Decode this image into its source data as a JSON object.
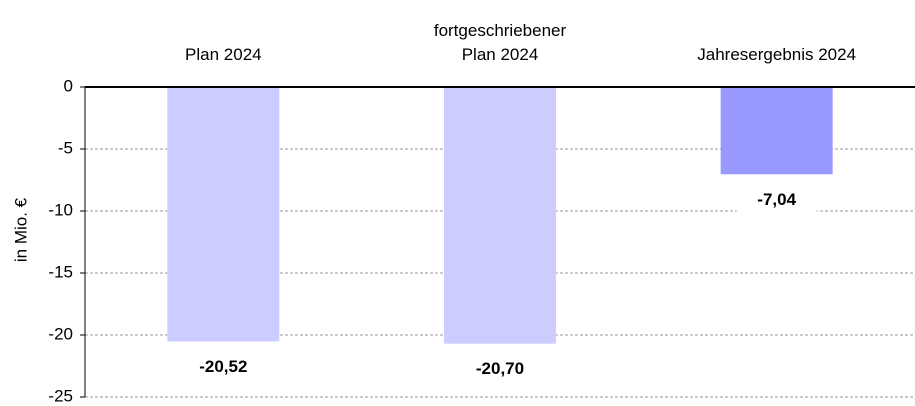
{
  "chart_data": {
    "type": "bar",
    "categories": [
      "Plan 2024",
      "fortgeschriebener\nPlan 2024",
      "Jahresergebnis 2024"
    ],
    "values": [
      -20.52,
      -20.7,
      -7.04
    ],
    "value_labels": [
      "-20,52",
      "-20,70",
      "-7,04"
    ],
    "colors": [
      "#ccccff",
      "#ccccff",
      "#9999ff"
    ],
    "y_label": "in Mio. €",
    "ylim": [
      -25,
      0
    ],
    "yticks": [
      0,
      -5,
      -10,
      -15,
      -20,
      -25
    ],
    "grid": true
  }
}
